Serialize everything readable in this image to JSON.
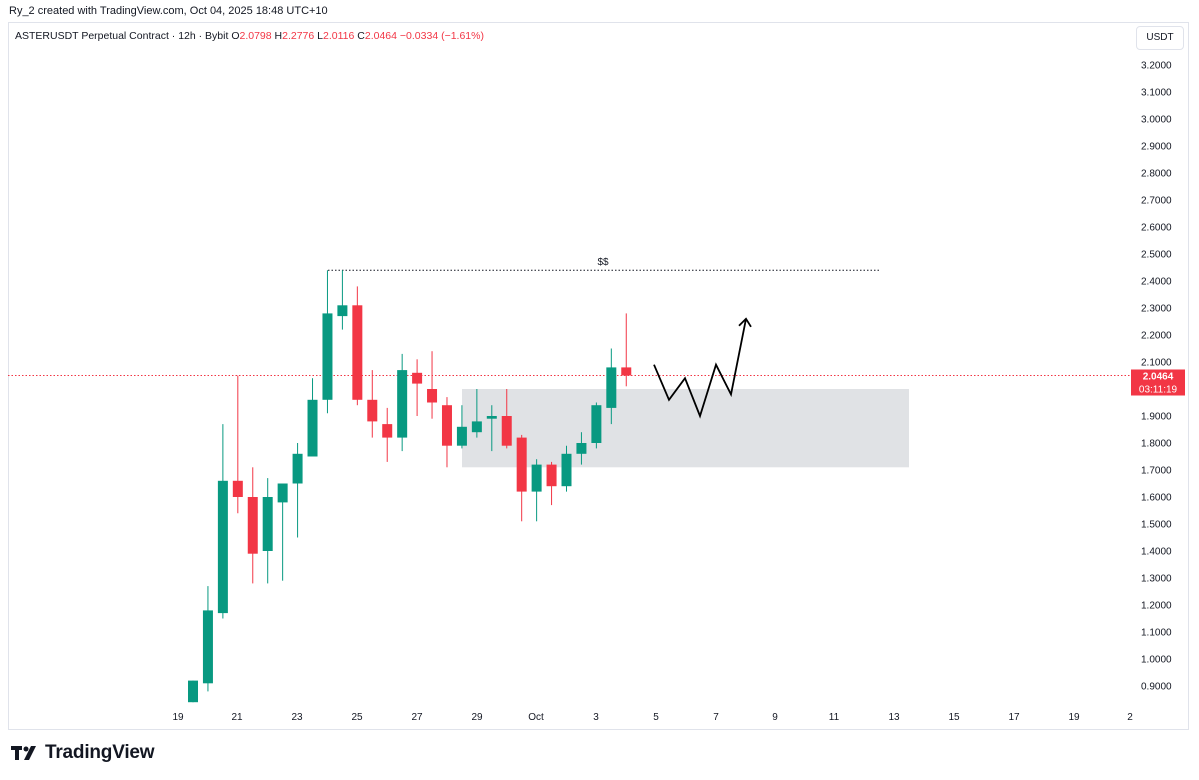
{
  "header": {
    "credit": "Ry_2 created with TradingView.com, Oct 04, 2025 18:48 UTC+10"
  },
  "legend": {
    "symbol": "ASTERUSDT Perpetual Contract · 12h · Bybit",
    "o_label": "O",
    "o_value": "2.0798",
    "h_label": "H",
    "h_value": "2.2776",
    "l_label": "L",
    "l_value": "2.0116",
    "c_label": "C",
    "c_value": "2.0464",
    "change": "−0.0334 (−1.61%)"
  },
  "currency": "USDT",
  "price_tag": {
    "price": "2.0464",
    "countdown": "03:11:19"
  },
  "annotation_label": "$$",
  "brand": "TradingView",
  "colors": {
    "up": "#089981",
    "down": "#f23645",
    "zone": "#e0e2e5",
    "grid_text": "#131722",
    "dotted_line": "#131722"
  },
  "chart_data": {
    "type": "candlestick",
    "interval": "12h",
    "ylim": [
      0.85,
      3.26
    ],
    "y_ticks": [
      "0.9000",
      "1.0000",
      "1.1000",
      "1.2000",
      "1.3000",
      "1.4000",
      "1.5000",
      "1.6000",
      "1.7000",
      "1.8000",
      "1.9000",
      "2.0000",
      "2.1000",
      "2.2000",
      "2.3000",
      "2.4000",
      "2.5000",
      "2.6000",
      "2.7000",
      "2.8000",
      "2.9000",
      "3.0000",
      "3.1000",
      "3.2000"
    ],
    "x_ticks": [
      "19",
      "21",
      "23",
      "25",
      "27",
      "29",
      "Oct",
      "3",
      "5",
      "7",
      "9",
      "11",
      "13",
      "15",
      "17",
      "19",
      "2"
    ],
    "first_candle_date": "Sep 19 12:00",
    "candles": [
      {
        "o": 0.84,
        "h": 0.92,
        "l": 0.84,
        "c": 0.92
      },
      {
        "o": 0.91,
        "h": 1.27,
        "l": 0.88,
        "c": 1.18
      },
      {
        "o": 1.17,
        "h": 1.87,
        "l": 1.15,
        "c": 1.66
      },
      {
        "o": 1.66,
        "h": 2.05,
        "l": 1.54,
        "c": 1.6
      },
      {
        "o": 1.6,
        "h": 1.71,
        "l": 1.28,
        "c": 1.39
      },
      {
        "o": 1.4,
        "h": 1.67,
        "l": 1.28,
        "c": 1.6
      },
      {
        "o": 1.58,
        "h": 1.65,
        "l": 1.29,
        "c": 1.65
      },
      {
        "o": 1.65,
        "h": 1.8,
        "l": 1.45,
        "c": 1.76
      },
      {
        "o": 1.75,
        "h": 2.04,
        "l": 1.75,
        "c": 1.96
      },
      {
        "o": 1.96,
        "h": 2.44,
        "l": 1.91,
        "c": 2.28
      },
      {
        "o": 2.27,
        "h": 2.44,
        "l": 2.22,
        "c": 2.31
      },
      {
        "o": 2.31,
        "h": 2.38,
        "l": 1.94,
        "c": 1.96
      },
      {
        "o": 1.96,
        "h": 2.07,
        "l": 1.82,
        "c": 1.88
      },
      {
        "o": 1.87,
        "h": 1.93,
        "l": 1.73,
        "c": 1.82
      },
      {
        "o": 1.82,
        "h": 2.13,
        "l": 1.77,
        "c": 2.07
      },
      {
        "o": 2.06,
        "h": 2.11,
        "l": 1.9,
        "c": 2.02
      },
      {
        "o": 2.0,
        "h": 2.14,
        "l": 1.89,
        "c": 1.95
      },
      {
        "o": 1.94,
        "h": 1.97,
        "l": 1.71,
        "c": 1.79
      },
      {
        "o": 1.79,
        "h": 1.94,
        "l": 1.78,
        "c": 1.86
      },
      {
        "o": 1.84,
        "h": 2.0,
        "l": 1.82,
        "c": 1.88
      },
      {
        "o": 1.89,
        "h": 1.94,
        "l": 1.77,
        "c": 1.9
      },
      {
        "o": 1.9,
        "h": 2.0,
        "l": 1.78,
        "c": 1.79
      },
      {
        "o": 1.82,
        "h": 1.83,
        "l": 1.51,
        "c": 1.62
      },
      {
        "o": 1.62,
        "h": 1.74,
        "l": 1.51,
        "c": 1.72
      },
      {
        "o": 1.72,
        "h": 1.73,
        "l": 1.57,
        "c": 1.64
      },
      {
        "o": 1.64,
        "h": 1.79,
        "l": 1.62,
        "c": 1.76
      },
      {
        "o": 1.76,
        "h": 1.84,
        "l": 1.72,
        "c": 1.8
      },
      {
        "o": 1.8,
        "h": 1.95,
        "l": 1.78,
        "c": 1.94
      },
      {
        "o": 1.93,
        "h": 2.15,
        "l": 1.87,
        "c": 2.08
      },
      {
        "o": 2.08,
        "h": 2.28,
        "l": 2.01,
        "c": 2.05
      }
    ],
    "liquidity_level": 2.44,
    "zone": {
      "from": 1.71,
      "to": 2.0
    },
    "projection_path": [
      2.09,
      1.96,
      2.04,
      1.9,
      2.09,
      1.98,
      2.26
    ]
  }
}
